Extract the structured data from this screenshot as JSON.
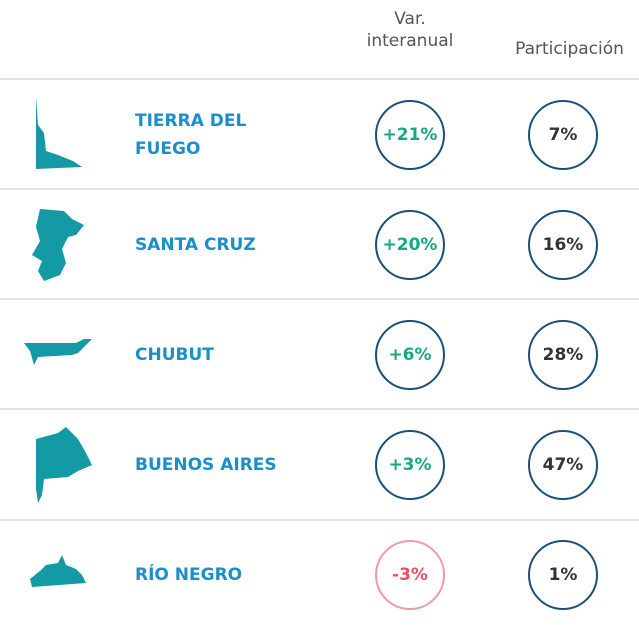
{
  "header": {
    "var": "Var. interanual",
    "participation": "Participación"
  },
  "table": {
    "rows": [
      {
        "name": "TIERRA DEL FUEGO",
        "var": "+21%",
        "participation": "7%"
      },
      {
        "name": "SANTA CRUZ",
        "var": "+20%",
        "participation": "16%"
      },
      {
        "name": "CHUBUT",
        "var": "+6%",
        "participation": "28%"
      },
      {
        "name": "BUENOS AIRES",
        "var": "+3%",
        "participation": "47%"
      },
      {
        "name": "RÍO NEGRO",
        "var": "-3%",
        "participation": "1%"
      }
    ]
  }
}
